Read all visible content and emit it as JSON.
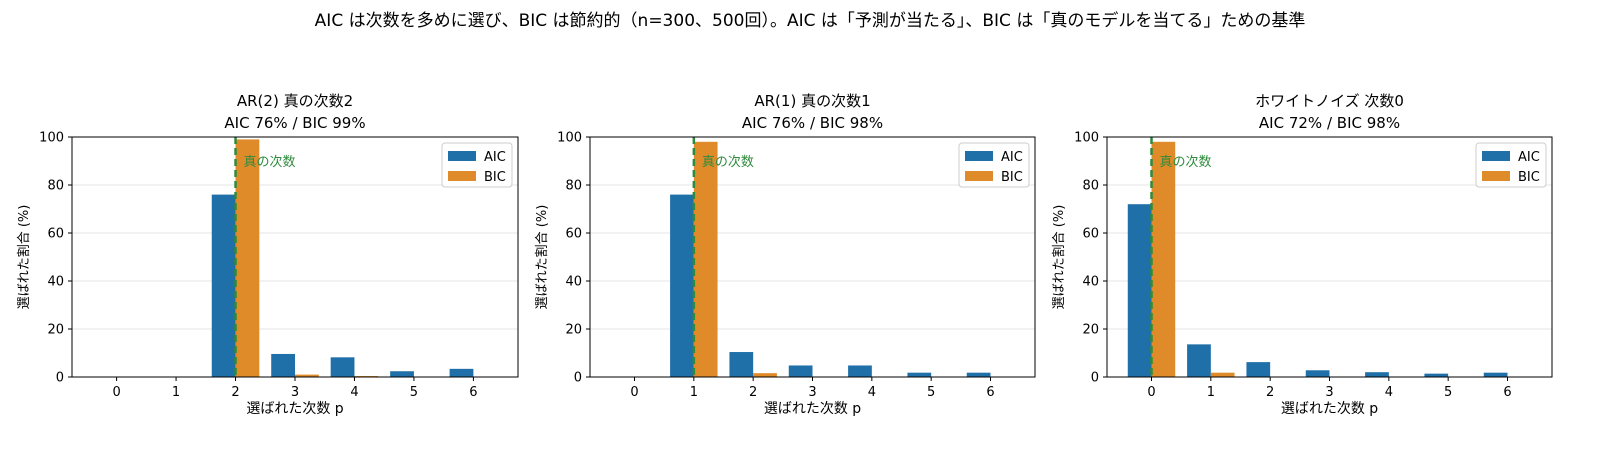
{
  "suptitle": "AIC は次数を多めに選び、BIC は節約的（n=300、500回）。AIC は「予測が当たる」、BIC は「真のモデルを当てる」ための基準",
  "colors": {
    "aic": "#1f6fa8",
    "bic": "#e08b2a",
    "true_line": "#2e8b3d",
    "grid": "#e6e6e6"
  },
  "chart_data": [
    {
      "type": "bar",
      "title": "AR(2) 真の次数2",
      "subtitle": "AIC 76% / BIC 99%",
      "xlabel": "選ばれた次数 p",
      "ylabel": "選ばれた割合 (%)",
      "categories": [
        "0",
        "1",
        "2",
        "3",
        "4",
        "5",
        "6"
      ],
      "ylim": [
        0,
        100
      ],
      "yticks": [
        0,
        20,
        40,
        60,
        80,
        100
      ],
      "grid": "y",
      "legend": "top-right",
      "series": [
        {
          "name": "AIC",
          "values": [
            0,
            0,
            76,
            9.6,
            8.2,
            2.4,
            3.4
          ]
        },
        {
          "name": "BIC",
          "values": [
            0,
            0,
            99,
            1.0,
            0.4,
            0,
            0
          ]
        }
      ],
      "true_order": 2,
      "annotation": "真の次数"
    },
    {
      "type": "bar",
      "title": "AR(1) 真の次数1",
      "subtitle": "AIC 76% / BIC 98%",
      "xlabel": "選ばれた次数 p",
      "ylabel": "選ばれた割合 (%)",
      "categories": [
        "0",
        "1",
        "2",
        "3",
        "4",
        "5",
        "6"
      ],
      "ylim": [
        0,
        100
      ],
      "yticks": [
        0,
        20,
        40,
        60,
        80,
        100
      ],
      "grid": "y",
      "legend": "top-right",
      "series": [
        {
          "name": "AIC",
          "values": [
            0,
            76,
            10.4,
            4.8,
            4.8,
            1.8,
            1.8
          ]
        },
        {
          "name": "BIC",
          "values": [
            0,
            98,
            1.6,
            0,
            0,
            0,
            0
          ]
        }
      ],
      "true_order": 1,
      "annotation": "真の次数"
    },
    {
      "type": "bar",
      "title": "ホワイトノイズ 次数0",
      "subtitle": "AIC 72% / BIC 98%",
      "xlabel": "選ばれた次数 p",
      "ylabel": "選ばれた割合 (%)",
      "categories": [
        "0",
        "1",
        "2",
        "3",
        "4",
        "5",
        "6"
      ],
      "ylim": [
        0,
        100
      ],
      "yticks": [
        0,
        20,
        40,
        60,
        80,
        100
      ],
      "grid": "y",
      "legend": "top-right",
      "series": [
        {
          "name": "AIC",
          "values": [
            72,
            13.6,
            6.2,
            2.8,
            2.0,
            1.4,
            1.8
          ]
        },
        {
          "name": "BIC",
          "values": [
            98,
            1.8,
            0,
            0,
            0,
            0,
            0
          ]
        }
      ],
      "true_order": 0,
      "annotation": "真の次数"
    }
  ]
}
